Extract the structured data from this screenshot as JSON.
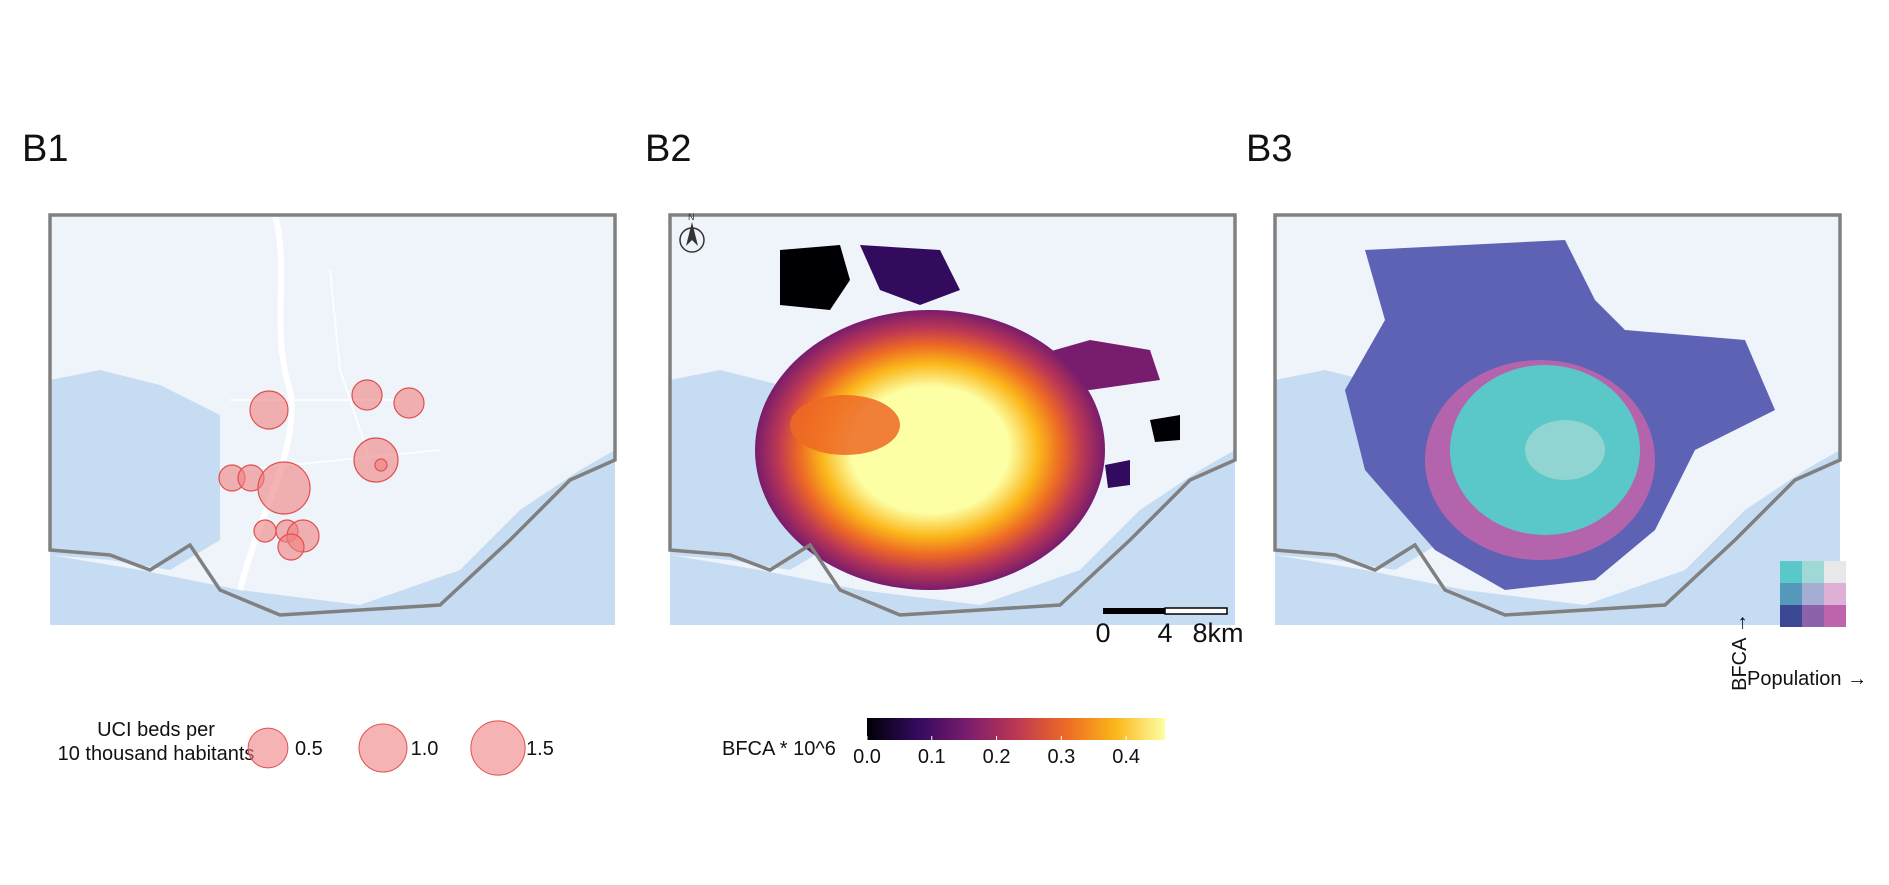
{
  "panels": [
    {
      "label": "B1"
    },
    {
      "label": "B2"
    },
    {
      "label": "B3"
    }
  ],
  "legend_b1": {
    "title_line1": "UCI beds per",
    "title_line2": "10 thousand habitants",
    "entries": [
      {
        "label": "0.5",
        "value": 0.5
      },
      {
        "label": "1.0",
        "value": 1.0
      },
      {
        "label": "1.5",
        "value": 1.5
      }
    ],
    "color": "#f08080"
  },
  "legend_b2": {
    "title": "BFCA * 10^6",
    "ticks": [
      "0.0",
      "0.1",
      "0.2",
      "0.3",
      "0.4"
    ],
    "range": [
      0.0,
      0.46
    ],
    "gradient": [
      "#000004",
      "#320a5e",
      "#781c6d",
      "#bc3754",
      "#ed6925",
      "#fbb61a",
      "#fcffa4"
    ]
  },
  "scale_bar": {
    "labels": [
      "0",
      "4",
      "8km"
    ]
  },
  "north_arrow": {
    "label": "N"
  },
  "bivariate_legend": {
    "y_label": "BFCA →",
    "x_label": "Population →",
    "colors": [
      [
        "#5ac8c8",
        "#9fd8d4",
        "#e8e8e8"
      ],
      [
        "#5698b9",
        "#a5add3",
        "#dfb0d6"
      ],
      [
        "#3b4994",
        "#8c62aa",
        "#be64ac"
      ]
    ]
  },
  "colors": {
    "water": "#c6dcf2",
    "land": "#eef4fa",
    "boundary": "#808080",
    "hex_low": "#5d62b5",
    "hex_cyan": "#5ac8c8",
    "hex_pink": "#be64ac"
  }
}
